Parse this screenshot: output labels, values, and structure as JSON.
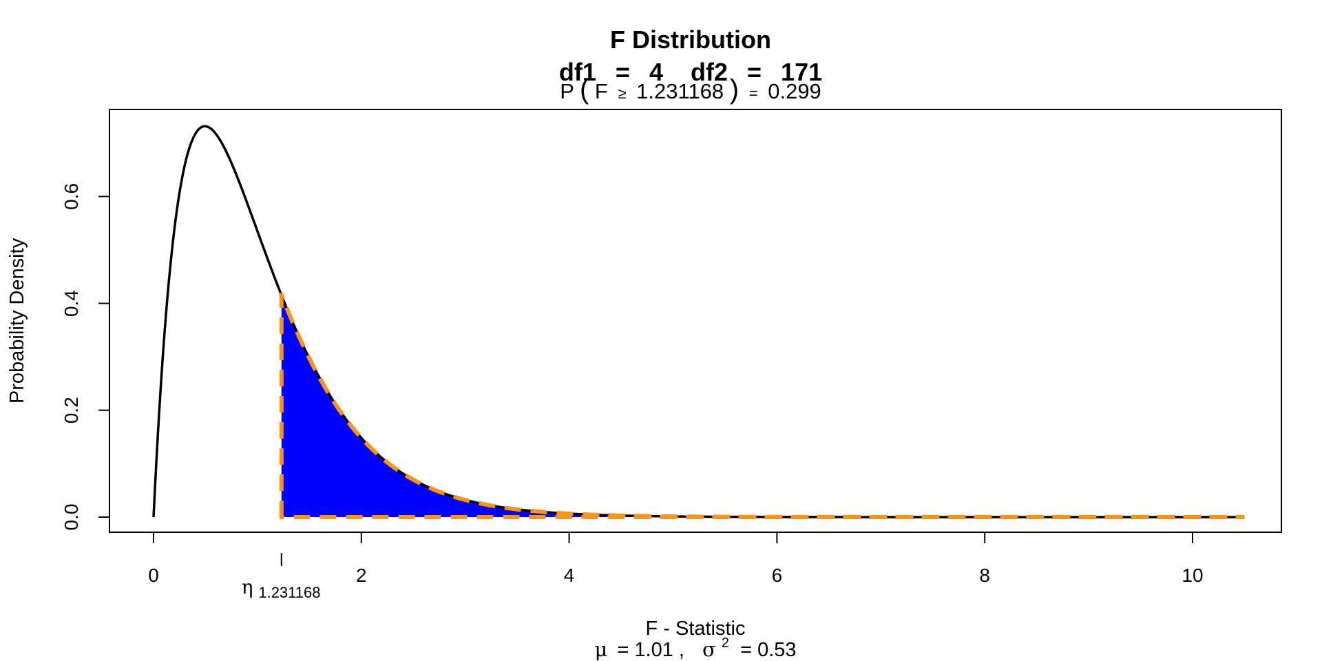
{
  "chart_data": {
    "type": "area",
    "title": "F Distribution",
    "subtitle": {
      "df1_label": "df1",
      "df1": "4",
      "df2_label": "df2",
      "df2": "171",
      "equals": "="
    },
    "probability": {
      "prefix": "P",
      "open": "(",
      "variable": "F",
      "relation": "≥",
      "critical_value": "1.231168",
      "close": ")",
      "equals": "=",
      "value": "0.299"
    },
    "xlabel": "F - Statistic",
    "ylabel": "Probability Density",
    "stats": {
      "mu_symbol": "μ",
      "mu_value": "= 1.01 ,",
      "sigma_symbol": "σ",
      "sigma_power": "2",
      "sigma_value": "= 0.53"
    },
    "critical_marker": {
      "symbol": "η",
      "subscript": "1.231168",
      "x": 1.231168
    },
    "df1": 4,
    "df2": 171,
    "xlim": [
      0,
      10.5
    ],
    "ylim": [
      0,
      0.73
    ],
    "x_ticks": [
      0,
      2,
      4,
      6,
      8,
      10
    ],
    "x_tick_labels": [
      "0",
      "2",
      "4",
      "6",
      "8",
      "10"
    ],
    "y_ticks": [
      0.0,
      0.2,
      0.4,
      0.6
    ],
    "y_tick_labels": [
      "0.0",
      "0.2",
      "0.4",
      "0.6"
    ],
    "shaded_region": {
      "from": 1.231168,
      "to": 10.5
    },
    "tail_probability": 0.299,
    "mean": 1.01,
    "variance": 0.53,
    "colors": {
      "curve": "#000000",
      "fill": "#0000ff",
      "outline": "#f7941d",
      "frame": "#000000"
    },
    "grid": false,
    "legend": "none"
  }
}
